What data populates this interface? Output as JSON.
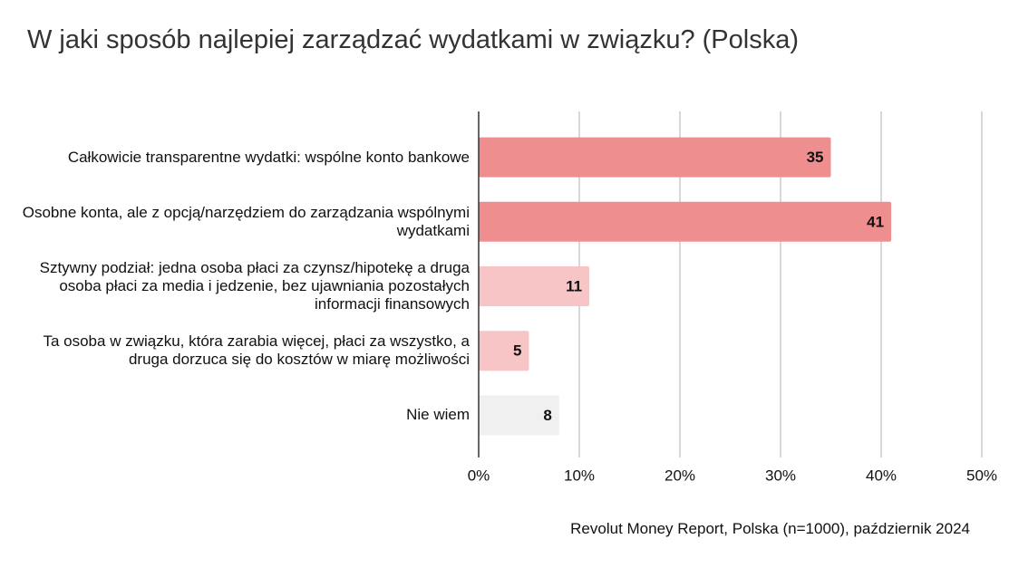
{
  "chart_data": {
    "type": "hbar",
    "title": "W jaki sposób najlepiej zarządzać wydatkami w związku? (Polska)",
    "source": "Revolut Money Report, Polska (n=1000), październik 2024",
    "categories": [
      "Całkowicie transparentne wydatki: wspólne konto bankowe",
      "Osobne konta, ale z opcją/narzędziem do zarządzania wspólnymi wydatkami",
      "Sztywny podział: jedna osoba płaci za czynsz/hipotekę a druga osoba płaci za media i jedzenie, bez ujawniania pozostałych informacji finansowych",
      "Ta osoba w związku, która zarabia więcej, płaci za wszystko, a druga dorzuca się do kosztów w miarę możliwości",
      "Nie wiem"
    ],
    "values": [
      35,
      41,
      11,
      5,
      8
    ],
    "colors": [
      "#ee8e8f",
      "#ee8e8f",
      "#f7c5c5",
      "#f7c5c5",
      "#f0f0f0"
    ],
    "xlim": [
      0,
      50
    ],
    "xticks": [
      {
        "value": 0,
        "label": "0%"
      },
      {
        "value": 10,
        "label": "10%"
      },
      {
        "value": 20,
        "label": "20%"
      },
      {
        "value": 30,
        "label": "30%"
      },
      {
        "value": 40,
        "label": "40%"
      },
      {
        "value": 50,
        "label": "50%"
      }
    ],
    "grid": true
  }
}
